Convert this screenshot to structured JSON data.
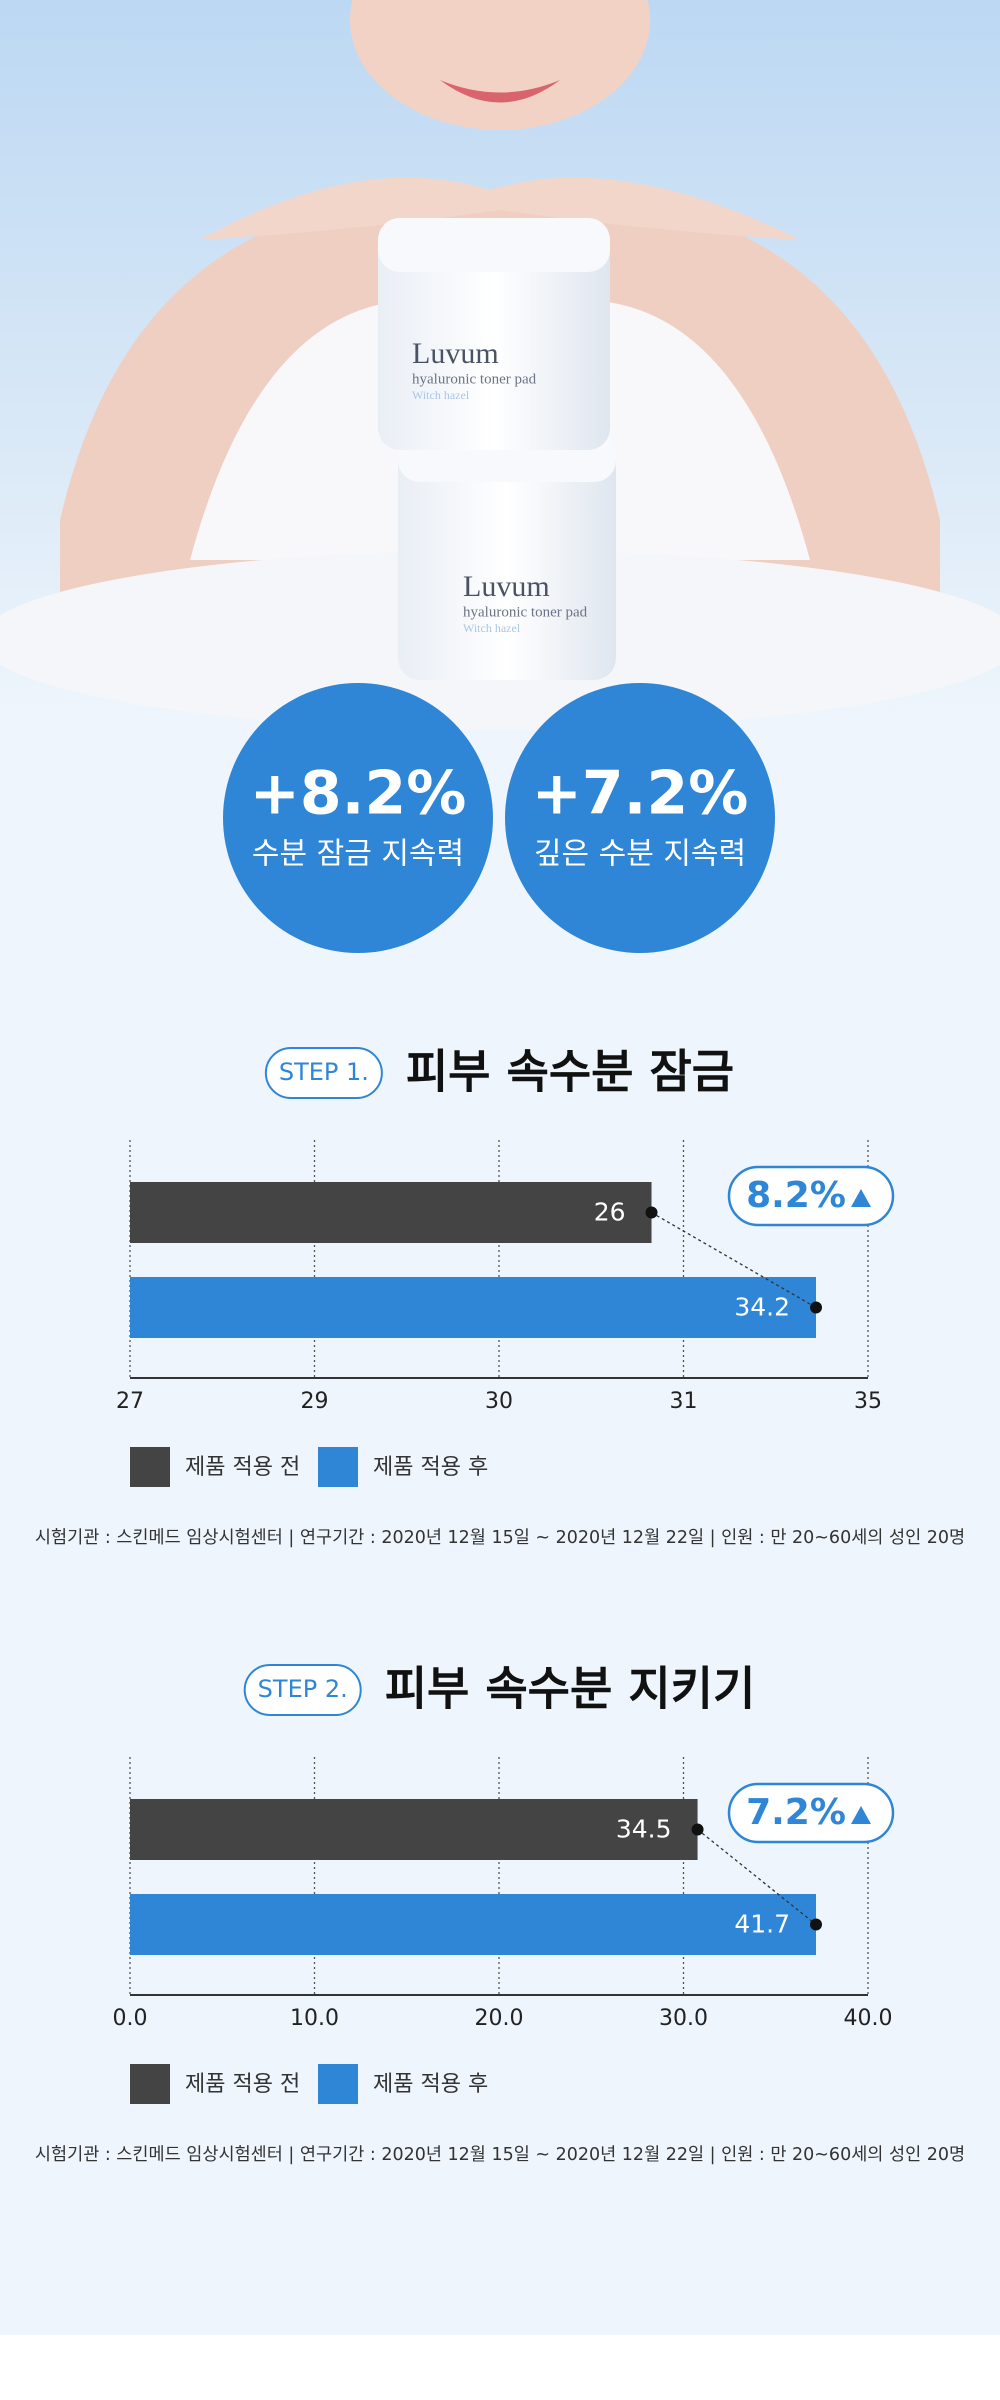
{
  "product": {
    "brand": "Luvum",
    "name": "hyaluronic toner pad",
    "sub": "Witch hazel"
  },
  "badges": [
    {
      "value": "+8.2%",
      "label": "수분 잠금 지속력"
    },
    {
      "value": "+7.2%",
      "label": "깊은 수분 지속력"
    }
  ],
  "chart_data": [
    {
      "type": "bar",
      "step": "STEP 1.",
      "title": "피부 속수분 잠금",
      "series": [
        {
          "name": "제품 적용 전",
          "color": "#444444",
          "values": [
            26
          ]
        },
        {
          "name": "제품 적용 후",
          "color": "#2f86d6",
          "values": [
            34.2
          ]
        }
      ],
      "xticks": [
        27,
        29,
        30,
        31,
        35
      ],
      "annotation": "8.2%",
      "note": "시험기관 : 스킨메드 임상시험센터 | 연구기간 : 2020년 12월 15일 ~ 2020년 12월 22일 | 인원 :  만 20~60세의 성인 20명"
    },
    {
      "type": "bar",
      "step": "STEP 2.",
      "title": "피부 속수분 지키기",
      "series": [
        {
          "name": "제품 적용 전",
          "color": "#444444",
          "values": [
            34.5
          ]
        },
        {
          "name": "제품 적용 후",
          "color": "#2f86d6",
          "values": [
            41.7
          ]
        }
      ],
      "xticks": [
        {
          "value": 0,
          "label": "0.0"
        },
        {
          "value": 10,
          "label": "10.0"
        },
        {
          "value": 20,
          "label": "20.0"
        },
        {
          "value": 30,
          "label": "30.0"
        },
        {
          "value": 40,
          "label": "40.0"
        }
      ],
      "annotation": "7.2%",
      "note": "시험기관 : 스킨메드 임상시험센터 | 연구기간 : 2020년 12월 15일 ~ 2020년 12월 22일 | 인원 :  만 20~60세의 성인 20명"
    }
  ]
}
